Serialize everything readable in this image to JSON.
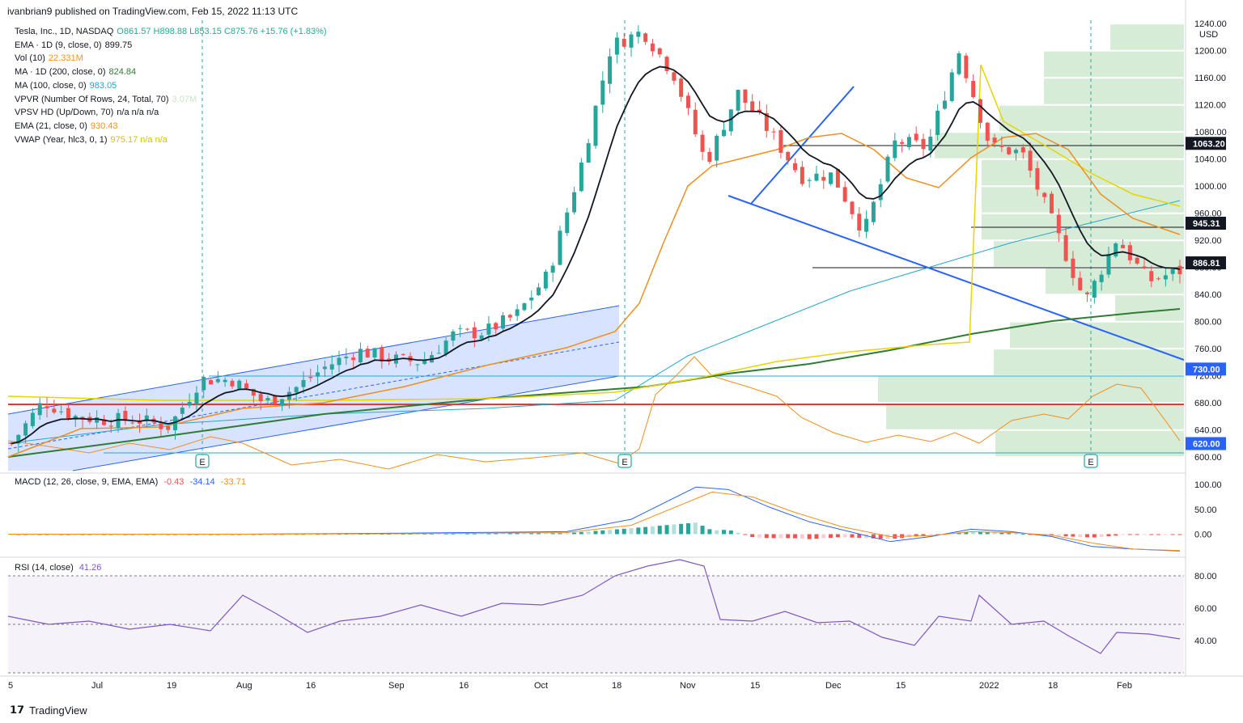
{
  "header": {
    "published": "ivanbrian9 published on TradingView.com, Feb 15, 2022 11:13 UTC"
  },
  "legend_main": [
    {
      "name": "Tesla, Inc., 1D, NASDAQ",
      "value": "O861.57  H898.88  L853.15  C875.76  +15.76 (+1.83%)",
      "color": "#22ab94"
    },
    {
      "name": "EMA · 1D (9, close, 0)",
      "value": "899.75",
      "color": "#131722"
    },
    {
      "name": "Vol (10)",
      "value": "22.331M",
      "color": "#f7931a"
    },
    {
      "name": "MA · 1D (200, close, 0)",
      "value": "824.84",
      "color": "#2e7d32"
    },
    {
      "name": "MA (100, close, 0)",
      "value": "983.05",
      "color": "#26a7c9"
    },
    {
      "name": "VPVR (Number Of Rows, 24, Total, 70)",
      "value": "3.07M",
      "color": "#c9e6c9"
    },
    {
      "name": "VPSV HD (Up/Down, 70)",
      "value": "n/a  n/a  n/a",
      "color": "#131722"
    },
    {
      "name": "EMA (21, close, 0)",
      "value": "930.43",
      "color": "#ef8f1f"
    },
    {
      "name": "VWAP (Year, hlc3, 0, 1)",
      "value": "975.17  n/a  n/a",
      "color": "#d6c400"
    }
  ],
  "legend_macd": {
    "name": "MACD (12, 26, close, 9, EMA, EMA)",
    "v1": "-0.43",
    "v2": "-34.14",
    "v3": "-33.71"
  },
  "legend_rsi": {
    "name": "RSI (14, close)",
    "value": "41.26"
  },
  "footer": {
    "brand": "TradingView",
    "logo": "𝟭𝟳"
  },
  "price_axis": {
    "currency": "USD",
    "ticks": [
      "1240.00",
      "1200.00",
      "1160.00",
      "1120.00",
      "1080.00",
      "1040.00",
      "1000.00",
      "960.00",
      "920.00",
      "880.00",
      "840.00",
      "800.00",
      "760.00",
      "720.00",
      "680.00",
      "640.00",
      "600.00"
    ],
    "tags": [
      {
        "label": "1063.20",
        "bg": "#131722"
      },
      {
        "label": "945.31",
        "bg": "#131722"
      },
      {
        "label": "886.81",
        "bg": "#131722"
      },
      {
        "label": "730.00",
        "bg": "#2962ff"
      },
      {
        "label": "620.00",
        "bg": "#2962ff"
      }
    ]
  },
  "macd_axis": [
    "100.00",
    "50.00",
    "0.00"
  ],
  "rsi_axis": [
    "80.00",
    "60.00",
    "40.00"
  ],
  "dates": [
    "5",
    "Jul",
    "19",
    "Aug",
    "16",
    "Sep",
    "16",
    "Oct",
    "18",
    "Nov",
    "15",
    "Dec",
    "15",
    "2022",
    "18",
    "Feb"
  ],
  "earnings_label": "E",
  "colors": {
    "up": "#26a69a",
    "down": "#ef5350",
    "ema9": "#131722",
    "ema21": "#ef8f1f",
    "ma100": "#26a7c9",
    "ma200": "#2e7d32",
    "vwap": "#e8d400",
    "trend": "#2962ff",
    "hline_red": "#e53935"
  },
  "chart_data": {
    "type": "candlestick",
    "title": "Tesla, Inc., 1D, NASDAQ",
    "y_range": [
      580,
      1245
    ],
    "last": {
      "open": 861.57,
      "high": 898.88,
      "low": 853.15,
      "close": 875.76
    },
    "key_levels": [
      1063.2,
      945.31,
      886.81,
      730.0,
      690.0,
      620.0
    ],
    "close_path": [
      [
        "Jun 21",
        620
      ],
      [
        "Jun 28",
        682
      ],
      [
        "Jul 5",
        660
      ],
      [
        "Jul 12",
        655
      ],
      [
        "Jul 19",
        655
      ],
      [
        "Jul 26",
        645
      ],
      [
        "Aug 2",
        715
      ],
      [
        "Aug 9",
        714
      ],
      [
        "Aug 16",
        680
      ],
      [
        "Aug 23",
        702
      ],
      [
        "Aug 30",
        735
      ],
      [
        "Sep 7",
        757
      ],
      [
        "Sep 13",
        745
      ],
      [
        "Sep 20",
        740
      ],
      [
        "Sep 27",
        781
      ],
      [
        "Oct 4",
        785
      ],
      [
        "Oct 11",
        810
      ],
      [
        "Oct 18",
        870
      ],
      [
        "Oct 25",
        1024
      ],
      [
        "Nov 1",
        1208
      ],
      [
        "Nov 4",
        1229
      ],
      [
        "Nov 8",
        1163
      ],
      [
        "Nov 12",
        1033
      ],
      [
        "Nov 19",
        1138
      ],
      [
        "Nov 26",
        1081
      ],
      [
        "Dec 3",
        1014
      ],
      [
        "Dec 10",
        1017
      ],
      [
        "Dec 17",
        932
      ],
      [
        "Dec 23",
        1067
      ],
      [
        "Dec 31",
        1057
      ],
      [
        "Jan 3",
        1200
      ],
      [
        "Jan 10",
        1058
      ],
      [
        "Jan 14",
        1049
      ],
      [
        "Jan 21",
        943
      ],
      [
        "Jan 27",
        829
      ],
      [
        "Feb 4",
        923
      ],
      [
        "Feb 11",
        860
      ],
      [
        "Feb 14",
        875
      ]
    ],
    "macd": {
      "macd": -34.14,
      "signal": -33.71,
      "hist": -0.43,
      "y_range": [
        -40,
        115
      ]
    },
    "rsi": {
      "value": 41.26,
      "levels": [
        70,
        50,
        30
      ],
      "y_range": [
        20,
        90
      ]
    }
  }
}
